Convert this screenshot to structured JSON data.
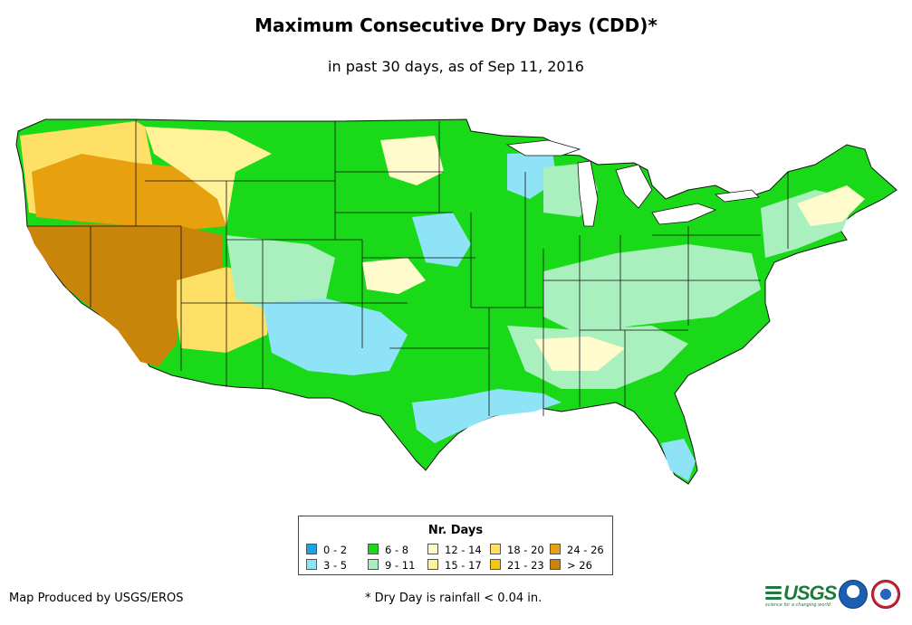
{
  "title": "Maximum Consecutive Dry Days (CDD)*",
  "subtitle": "in past 30 days, as of Sep 11, 2016",
  "legend": {
    "title": "Nr. Days",
    "items": [
      {
        "label": "0 - 2",
        "color": "#1aa3e8"
      },
      {
        "label": "3 - 5",
        "color": "#8fe3f6"
      },
      {
        "label": "6 - 8",
        "color": "#19d919"
      },
      {
        "label": "9 - 11",
        "color": "#aaf0bf"
      },
      {
        "label": "12 - 14",
        "color": "#fffbcc"
      },
      {
        "label": "15 - 17",
        "color": "#fff299"
      },
      {
        "label": "18 - 20",
        "color": "#ffe066"
      },
      {
        "label": "21 - 23",
        "color": "#f9c312"
      },
      {
        "label": "24 - 26",
        "color": "#e8a10e"
      },
      {
        "label": "> 26",
        "color": "#c9850a"
      }
    ]
  },
  "footer": {
    "producer": "Map Produced by USGS/EROS",
    "note": "* Dry Day is rainfall < 0.04 in."
  },
  "logos": {
    "usgs": "USGS",
    "usgs_tagline": "science for a changing world"
  }
}
